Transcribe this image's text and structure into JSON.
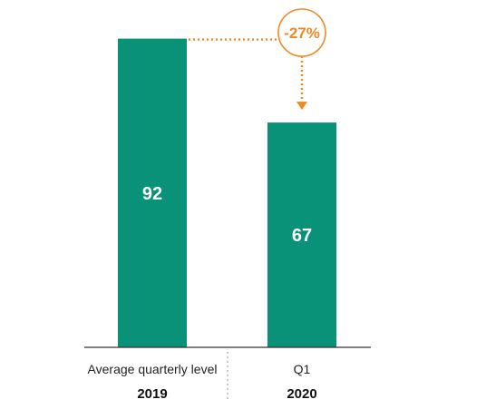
{
  "chart_data": {
    "type": "bar",
    "categories": [
      "Average quarterly level",
      "Q1"
    ],
    "groups": [
      "2019",
      "2020"
    ],
    "values": [
      92,
      67
    ],
    "data_labels": [
      "92",
      "67"
    ],
    "ylim": [
      0,
      100
    ],
    "change_annotation": "-27%",
    "grid": false,
    "colors": {
      "bar": "#0a9278",
      "accent": "#ee8a26",
      "axis": "#333333",
      "divider": "#c8c8c8"
    }
  }
}
